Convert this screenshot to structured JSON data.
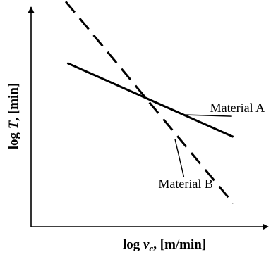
{
  "chart_data": {
    "type": "line",
    "title": "",
    "xlabel": "log v",
    "xlabel_sub": "c",
    "xlabel_unit": ", [m/min]",
    "ylabel": "log T",
    "ylabel_unit": ", [min]",
    "xlim": [
      0,
      10
    ],
    "ylim": [
      0,
      10
    ],
    "ticks": "none",
    "grid": false,
    "legend": "none",
    "series": [
      {
        "name": "Material A",
        "style": "solid",
        "color": "#000000",
        "x": [
          1.53,
          8.53
        ],
        "y": [
          7.45,
          4.09
        ],
        "label_at": [
          7.55,
          5.22
        ],
        "leader_to": [
          6.33,
          5.1
        ]
      },
      {
        "name": "Material B",
        "style": "dashed",
        "color": "#000000",
        "x": [
          1.46,
          8.53
        ],
        "y": [
          10.25,
          1.06
        ],
        "label_at": [
          5.37,
          1.76
        ],
        "leader_to": [
          6.07,
          3.99
        ]
      }
    ]
  }
}
